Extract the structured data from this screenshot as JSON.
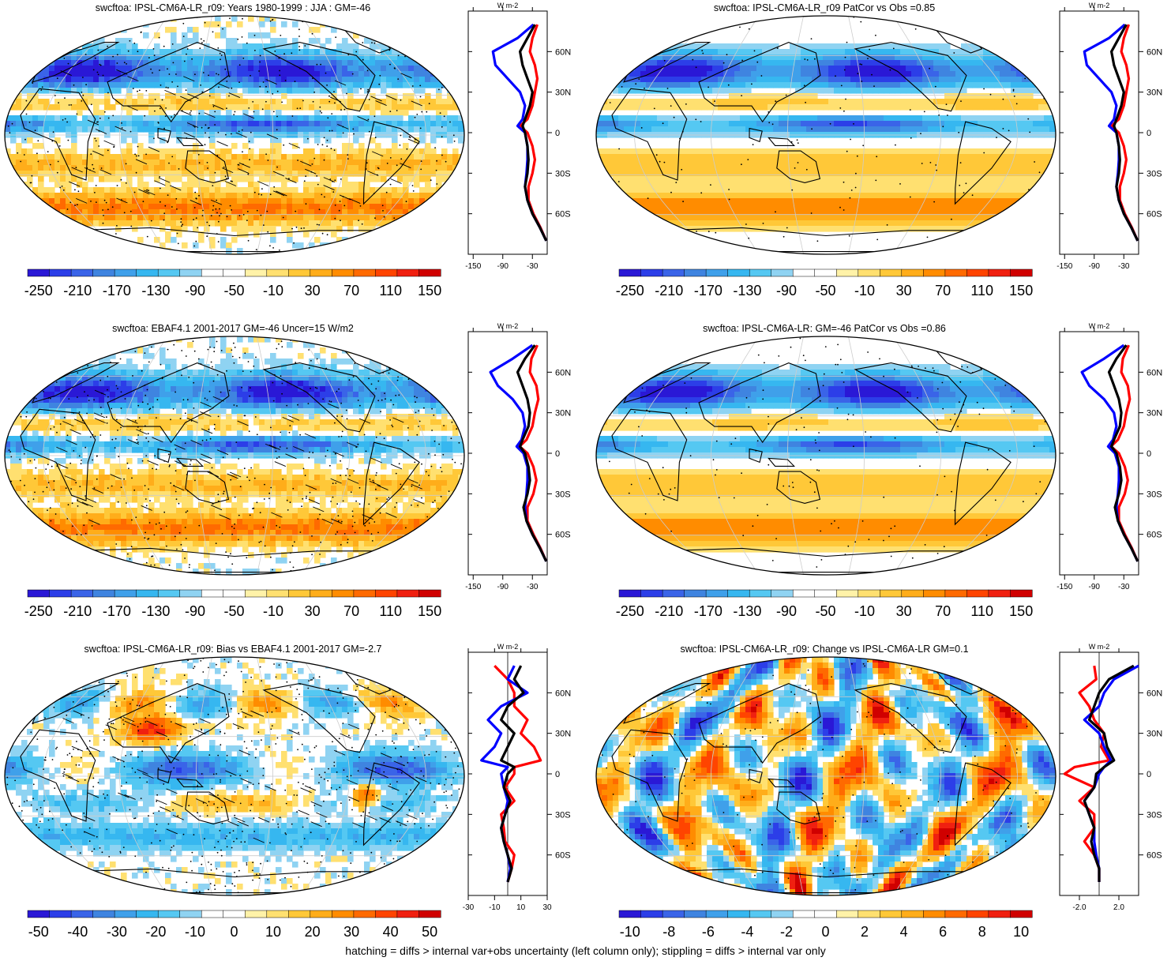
{
  "footer": "hatching = diffs > internal var+obs uncertainty (left column only); stippling = diffs > internal var only",
  "colors": {
    "model": "#000000",
    "obs": "#0000ff",
    "diff": "#ff0000",
    "ocean": "#ffffff",
    "coast": "#000000"
  },
  "colorbar_palette": [
    "#2a18d6",
    "#2c3ee8",
    "#3a64e8",
    "#3f84e0",
    "#3fa0ea",
    "#36b7f0",
    "#55c8f2",
    "#8fd3f2",
    "#ffffff",
    "#ffffff",
    "#fff2a8",
    "#ffe070",
    "#ffc838",
    "#ffad1a",
    "#ff8c00",
    "#ff6a00",
    "#ff4400",
    "#f02010",
    "#d00000"
  ],
  "panels": [
    {
      "id": "p1",
      "title": "swcftoa: IPSL-CM6A-LR_r09: Years 1980-1999 : JJA : GM=-46",
      "map_field": "sw_mean",
      "hatching": true,
      "colorbar_labels": [
        "-250",
        "-210",
        "-170",
        "-130",
        "-90",
        "-50",
        "-10",
        "30",
        "70",
        "110",
        "150"
      ],
      "profile_xticks": [
        "-150",
        "-90",
        "-30"
      ],
      "profile_xlim": [
        -160,
        0
      ],
      "profile_unit": "W m-2",
      "lat_labels": [
        "60N",
        "30N",
        "0",
        "30S",
        "60S"
      ]
    },
    {
      "id": "p2",
      "title": "swcftoa: IPSL-CM6A-LR_r09 PatCor vs Obs =0.85",
      "map_field": "sw_mean_smooth",
      "hatching": false,
      "colorbar_labels": [
        "-250",
        "-210",
        "-170",
        "-130",
        "-90",
        "-50",
        "-10",
        "30",
        "70",
        "110",
        "150"
      ],
      "profile_xticks": [
        "-150",
        "-90",
        "-30"
      ],
      "profile_xlim": [
        -160,
        0
      ],
      "profile_unit": "W m-2",
      "lat_labels": [
        "60N",
        "30N",
        "0",
        "30S",
        "60S"
      ]
    },
    {
      "id": "p3",
      "title": "swcftoa: EBAF4.1 2001-2017 GM=-46 Uncer=15 W/m2",
      "map_field": "sw_mean",
      "hatching": true,
      "colorbar_labels": [
        "-250",
        "-210",
        "-170",
        "-130",
        "-90",
        "-50",
        "-10",
        "30",
        "70",
        "110",
        "150"
      ],
      "profile_xticks": [
        "-150",
        "-90",
        "-30"
      ],
      "profile_xlim": [
        -160,
        0
      ],
      "profile_unit": "W m-2",
      "lat_labels": [
        "60N",
        "30N",
        "0",
        "30S",
        "60S"
      ]
    },
    {
      "id": "p4",
      "title": "swcftoa: IPSL-CM6A-LR: GM=-46 PatCor vs Obs =0.86",
      "map_field": "sw_mean_smooth",
      "hatching": false,
      "colorbar_labels": [
        "-250",
        "-210",
        "-170",
        "-130",
        "-90",
        "-50",
        "-10",
        "30",
        "70",
        "110",
        "150"
      ],
      "profile_xticks": [
        "-150",
        "-90",
        "-30"
      ],
      "profile_xlim": [
        -160,
        0
      ],
      "profile_unit": "W m-2",
      "lat_labels": [
        "60N",
        "30N",
        "0",
        "30S",
        "60S"
      ]
    },
    {
      "id": "p5",
      "title": "swcftoa: IPSL-CM6A-LR_r09: Bias vs EBAF4.1 2001-2017 GM=-2.7",
      "map_field": "bias",
      "hatching": true,
      "colorbar_labels": [
        "-50",
        "-40",
        "-30",
        "-20",
        "-10",
        "0",
        "10",
        "20",
        "30",
        "40",
        "50"
      ],
      "profile_xticks": [
        "-30",
        "-10",
        "10",
        "30"
      ],
      "profile_xlim": [
        -30,
        30
      ],
      "profile_unit": "W m-2",
      "lat_labels": [
        "60N",
        "30N",
        "0",
        "30S",
        "60S"
      ]
    },
    {
      "id": "p6",
      "title": "swcftoa: IPSL-CM6A-LR_r09: Change vs IPSL-CM6A-LR GM=0.1",
      "map_field": "change",
      "hatching": false,
      "colorbar_labels": [
        "-10",
        "-8",
        "-6",
        "-4",
        "-2",
        "0",
        "2",
        "4",
        "6",
        "8",
        "10"
      ],
      "profile_xticks": [
        "-2.0",
        "2.0"
      ],
      "profile_xlim": [
        -4,
        4
      ],
      "profile_unit": "W m-2",
      "lat_labels": [
        "60N",
        "30N",
        "0",
        "30S",
        "60S"
      ]
    }
  ],
  "chart_data": [
    {
      "type": "line",
      "panel": "p1",
      "title": "swcftoa: IPSL-CM6A-LR_r09: Years 1980-1999 : JJA : GM=-46",
      "x_axis": "latitude",
      "xlim": [
        -160,
        0
      ],
      "latitudes": [
        80,
        70,
        60,
        50,
        40,
        30,
        20,
        10,
        5,
        0,
        -10,
        -20,
        -30,
        -40,
        -50,
        -60,
        -70,
        -80
      ],
      "series": [
        {
          "values": [
            -25,
            -40,
            -55,
            -50,
            -40,
            -30,
            -35,
            -45,
            -50,
            -45,
            -40,
            -38,
            -40,
            -45,
            -40,
            -30,
            -15,
            -2
          ]
        },
        {
          "values": [
            -28,
            -60,
            -110,
            -105,
            -80,
            -55,
            -45,
            -50,
            -60,
            -45,
            -40,
            -40,
            -42,
            -45,
            -40,
            -30,
            -15,
            -2
          ]
        },
        {
          "values": [
            -20,
            -30,
            -35,
            -25,
            -20,
            -25,
            -30,
            -40,
            -55,
            -40,
            -30,
            -25,
            -30,
            -38,
            -38,
            -28,
            -14,
            -2
          ]
        }
      ]
    },
    {
      "type": "line",
      "panel": "p2",
      "title": "swcftoa: IPSL-CM6A-LR_r09 PatCor vs Obs =0.85",
      "x_axis": "latitude",
      "xlim": [
        -160,
        0
      ],
      "latitudes": [
        80,
        70,
        60,
        50,
        40,
        30,
        20,
        10,
        5,
        0,
        -10,
        -20,
        -30,
        -40,
        -50,
        -60,
        -70,
        -80
      ],
      "series": [
        {
          "values": [
            -25,
            -40,
            -55,
            -50,
            -40,
            -30,
            -35,
            -45,
            -50,
            -45,
            -40,
            -38,
            -40,
            -45,
            -40,
            -30,
            -15,
            -2
          ]
        },
        {
          "values": [
            -28,
            -60,
            -110,
            -105,
            -80,
            -55,
            -45,
            -50,
            -60,
            -45,
            -40,
            -40,
            -42,
            -45,
            -40,
            -30,
            -15,
            -2
          ]
        },
        {
          "values": [
            -20,
            -30,
            -35,
            -25,
            -20,
            -25,
            -30,
            -40,
            -55,
            -40,
            -30,
            -25,
            -30,
            -38,
            -38,
            -28,
            -14,
            -2
          ]
        }
      ]
    },
    {
      "type": "line",
      "panel": "p3",
      "title": "swcftoa: EBAF4.1 2001-2017 GM=-46 Uncer=15 W/m2",
      "x_axis": "latitude",
      "xlim": [
        -160,
        0
      ],
      "latitudes": [
        80,
        70,
        60,
        50,
        40,
        30,
        20,
        10,
        5,
        0,
        -10,
        -20,
        -30,
        -40,
        -50,
        -60,
        -70,
        -80
      ],
      "series": [
        {
          "values": [
            -25,
            -45,
            -60,
            -50,
            -40,
            -35,
            -38,
            -50,
            -55,
            -45,
            -38,
            -35,
            -40,
            -48,
            -42,
            -30,
            -15,
            -2
          ]
        },
        {
          "values": [
            -30,
            -70,
            -115,
            -100,
            -70,
            -50,
            -45,
            -52,
            -62,
            -48,
            -40,
            -40,
            -42,
            -45,
            -42,
            -30,
            -15,
            -2
          ]
        },
        {
          "values": [
            -20,
            -32,
            -35,
            -22,
            -18,
            -25,
            -30,
            -42,
            -56,
            -40,
            -28,
            -22,
            -28,
            -40,
            -40,
            -28,
            -14,
            -2
          ]
        }
      ]
    },
    {
      "type": "line",
      "panel": "p4",
      "title": "swcftoa: IPSL-CM6A-LR: GM=-46 PatCor vs Obs =0.86",
      "x_axis": "latitude",
      "xlim": [
        -160,
        0
      ],
      "latitudes": [
        80,
        70,
        60,
        50,
        40,
        30,
        20,
        10,
        5,
        0,
        -10,
        -20,
        -30,
        -40,
        -50,
        -60,
        -70,
        -80
      ],
      "series": [
        {
          "values": [
            -25,
            -45,
            -60,
            -50,
            -40,
            -35,
            -38,
            -50,
            -55,
            -45,
            -38,
            -35,
            -40,
            -48,
            -42,
            -30,
            -15,
            -2
          ]
        },
        {
          "values": [
            -30,
            -70,
            -115,
            -100,
            -70,
            -50,
            -45,
            -52,
            -62,
            -48,
            -40,
            -40,
            -42,
            -45,
            -42,
            -30,
            -15,
            -2
          ]
        },
        {
          "values": [
            -20,
            -32,
            -35,
            -22,
            -18,
            -25,
            -30,
            -42,
            -56,
            -40,
            -28,
            -22,
            -28,
            -40,
            -40,
            -28,
            -14,
            -2
          ]
        }
      ]
    },
    {
      "type": "line",
      "panel": "p5",
      "title": "swcftoa: IPSL-CM6A-LR_r09: Bias vs EBAF4.1 2001-2017 GM=-2.7",
      "x_axis": "latitude",
      "xlim": [
        -30,
        30
      ],
      "latitudes": [
        80,
        70,
        60,
        50,
        40,
        30,
        20,
        10,
        5,
        0,
        -10,
        -20,
        -30,
        -40,
        -50,
        -60,
        -70,
        -80
      ],
      "series": [
        {
          "values": [
            10,
            5,
            12,
            0,
            -5,
            5,
            0,
            -5,
            5,
            0,
            -3,
            2,
            -2,
            -5,
            -3,
            0,
            3,
            0
          ]
        },
        {
          "values": [
            5,
            0,
            15,
            -5,
            -15,
            -5,
            -10,
            -20,
            0,
            -5,
            -3,
            0,
            -2,
            -5,
            -3,
            0,
            2,
            0
          ]
        },
        {
          "values": [
            -10,
            0,
            5,
            5,
            15,
            10,
            20,
            25,
            5,
            5,
            -2,
            5,
            -5,
            -3,
            -2,
            5,
            3,
            0
          ]
        }
      ]
    },
    {
      "type": "line",
      "panel": "p6",
      "title": "swcftoa: IPSL-CM6A-LR_r09: Change vs IPSL-CM6A-LR GM=0.1",
      "x_axis": "latitude",
      "xlim": [
        -4,
        4
      ],
      "latitudes": [
        80,
        70,
        60,
        50,
        40,
        30,
        20,
        10,
        5,
        0,
        -10,
        -20,
        -30,
        -40,
        -50,
        -60,
        -70,
        -80
      ],
      "series": [
        {
          "values": [
            3.5,
            1.0,
            0.0,
            -0.5,
            -1.0,
            0.5,
            0.8,
            1.5,
            0.5,
            -0.3,
            -0.5,
            -1.5,
            -1.0,
            -0.5,
            -0.8,
            -0.5,
            0.0,
            0.0
          ]
        },
        {
          "values": [
            4.0,
            1.5,
            0.5,
            0.0,
            -1.5,
            0.0,
            0.5,
            1.2,
            0.5,
            0.0,
            -0.5,
            -1.5,
            -1.0,
            -0.5,
            -0.5,
            -0.3,
            0.0,
            0.0
          ]
        },
        {
          "values": [
            -0.5,
            -0.3,
            -2.0,
            -1.0,
            -0.5,
            0.5,
            0.2,
            1.0,
            -2.5,
            -3.5,
            -0.5,
            -2.0,
            -0.5,
            -0.5,
            -1.5,
            -0.5,
            0.0,
            0.0
          ]
        }
      ]
    }
  ]
}
